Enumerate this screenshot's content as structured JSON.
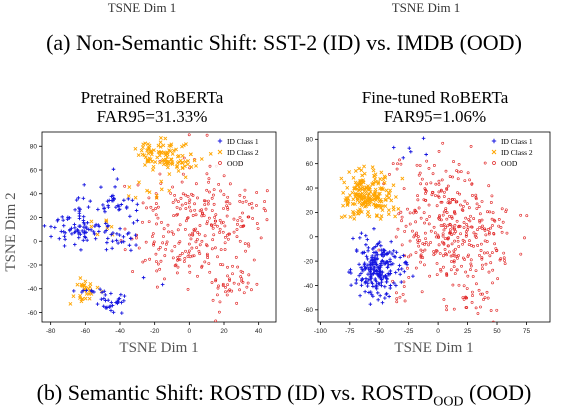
{
  "truncated_top": {
    "left_xlabel": "TSNE Dim 1",
    "right_xlabel": "TSNE Dim 1"
  },
  "caption_a": "(a) Non-Semantic Shift: SST-2 (ID) vs. IMDB (OOD)",
  "caption_b": {
    "prefix": "(b) Semantic Shift: ROSTD (ID) vs. ROSTD",
    "sub": "OOD",
    "suffix": " (OOD)"
  },
  "colors": {
    "id1": "#1515e0",
    "id2": "#ffa500",
    "ood": "#e02020"
  },
  "chart_data": [
    {
      "type": "scatter",
      "title": "Pretrained RoBERTa",
      "subtitle": "FAR95=31.33%",
      "xlabel": "TSNE Dim 1",
      "ylabel": "TSNE Dim 2",
      "xlim": [
        -85,
        50
      ],
      "ylim": [
        -68,
        92
      ],
      "xticks": [
        -80,
        -60,
        -40,
        -20,
        0,
        20,
        40
      ],
      "yticks": [
        -60,
        -40,
        -20,
        0,
        20,
        40,
        60,
        80
      ],
      "legend_position": "top-right",
      "series": [
        {
          "name": "ID Class 1",
          "marker": "plus",
          "color": "#1515e0",
          "clusters": [
            {
              "cx": -66,
              "cy": 10,
              "sx": 8,
              "sy": 7,
              "n": 70
            },
            {
              "cx": -43,
              "cy": 25,
              "sx": 6,
              "sy": 12,
              "n": 40
            },
            {
              "cx": -42,
              "cy": 2,
              "sx": 5,
              "sy": 4,
              "n": 18
            },
            {
              "cx": -45,
              "cy": -53,
              "sx": 5,
              "sy": 3.5,
              "n": 28
            },
            {
              "cx": -55,
              "cy": -42,
              "sx": 5,
              "sy": 3,
              "n": 12
            },
            {
              "cx": -62,
              "cy": 35,
              "sx": 3,
              "sy": 5,
              "n": 6
            },
            {
              "cx": -35,
              "cy": -15,
              "sx": 15,
              "sy": 25,
              "n": 10
            }
          ]
        },
        {
          "name": "ID Class 2",
          "marker": "x",
          "color": "#ffa500",
          "clusters": [
            {
              "cx": -17,
              "cy": 74,
              "sx": 8,
              "sy": 7,
              "n": 70
            },
            {
              "cx": -6,
              "cy": 67,
              "sx": 6,
              "sy": 6,
              "n": 35
            },
            {
              "cx": -60,
              "cy": -40,
              "sx": 4,
              "sy": 5,
              "n": 30
            },
            {
              "cx": -20,
              "cy": 42,
              "sx": 8,
              "sy": 4,
              "n": 10
            },
            {
              "cx": -47,
              "cy": 12,
              "sx": 6,
              "sy": 6,
              "n": 8
            }
          ]
        },
        {
          "name": "OOD",
          "marker": "circle",
          "color": "#e02020",
          "clusters": [
            {
              "cx": 5,
              "cy": 25,
              "sx": 13,
              "sy": 22,
              "n": 150
            },
            {
              "cx": 22,
              "cy": -32,
              "sx": 12,
              "sy": 15,
              "n": 60
            },
            {
              "cx": 32,
              "cy": 20,
              "sx": 8,
              "sy": 14,
              "n": 40
            },
            {
              "cx": -22,
              "cy": 5,
              "sx": 10,
              "sy": 20,
              "n": 40
            },
            {
              "cx": -5,
              "cy": -10,
              "sx": 8,
              "sy": 10,
              "n": 30
            }
          ]
        }
      ]
    },
    {
      "type": "scatter",
      "title": "Fine-tuned RoBERTa",
      "subtitle": "FAR95=1.06%",
      "xlabel": "TSNE Dim 1",
      "ylabel": "",
      "xlim": [
        -102,
        95
      ],
      "ylim": [
        -70,
        86
      ],
      "xticks": [
        -100,
        -75,
        -50,
        -25,
        0,
        25,
        50,
        75
      ],
      "yticks": [
        -60,
        -40,
        -20,
        0,
        20,
        40,
        60,
        80
      ],
      "legend_position": "top-right",
      "series": [
        {
          "name": "ID Class 1",
          "marker": "plus",
          "color": "#1515e0",
          "clusters": [
            {
              "cx": -52,
              "cy": -27,
              "sx": 9,
              "sy": 12,
              "n": 220
            },
            {
              "cx": -30,
              "cy": -22,
              "sx": 3,
              "sy": 4,
              "n": 6
            },
            {
              "cx": -22,
              "cy": 78,
              "sx": 6,
              "sy": 6,
              "n": 6
            }
          ]
        },
        {
          "name": "ID Class 2",
          "marker": "x",
          "color": "#ffa500",
          "clusters": [
            {
              "cx": -60,
              "cy": 35,
              "sx": 10,
              "sy": 9,
              "n": 200
            },
            {
              "cx": -40,
              "cy": 22,
              "sx": 4,
              "sy": 4,
              "n": 6
            }
          ]
        },
        {
          "name": "OOD",
          "marker": "circle",
          "color": "#e02020",
          "clusters": [
            {
              "cx": 5,
              "cy": 10,
              "sx": 18,
              "sy": 24,
              "n": 270
            },
            {
              "cx": 40,
              "cy": 0,
              "sx": 13,
              "sy": 18,
              "n": 80
            },
            {
              "cx": -30,
              "cy": -45,
              "sx": 6,
              "sy": 8,
              "n": 12
            },
            {
              "cx": 30,
              "cy": -50,
              "sx": 12,
              "sy": 8,
              "n": 30
            },
            {
              "cx": -15,
              "cy": 55,
              "sx": 15,
              "sy": 10,
              "n": 15
            }
          ]
        }
      ]
    }
  ]
}
